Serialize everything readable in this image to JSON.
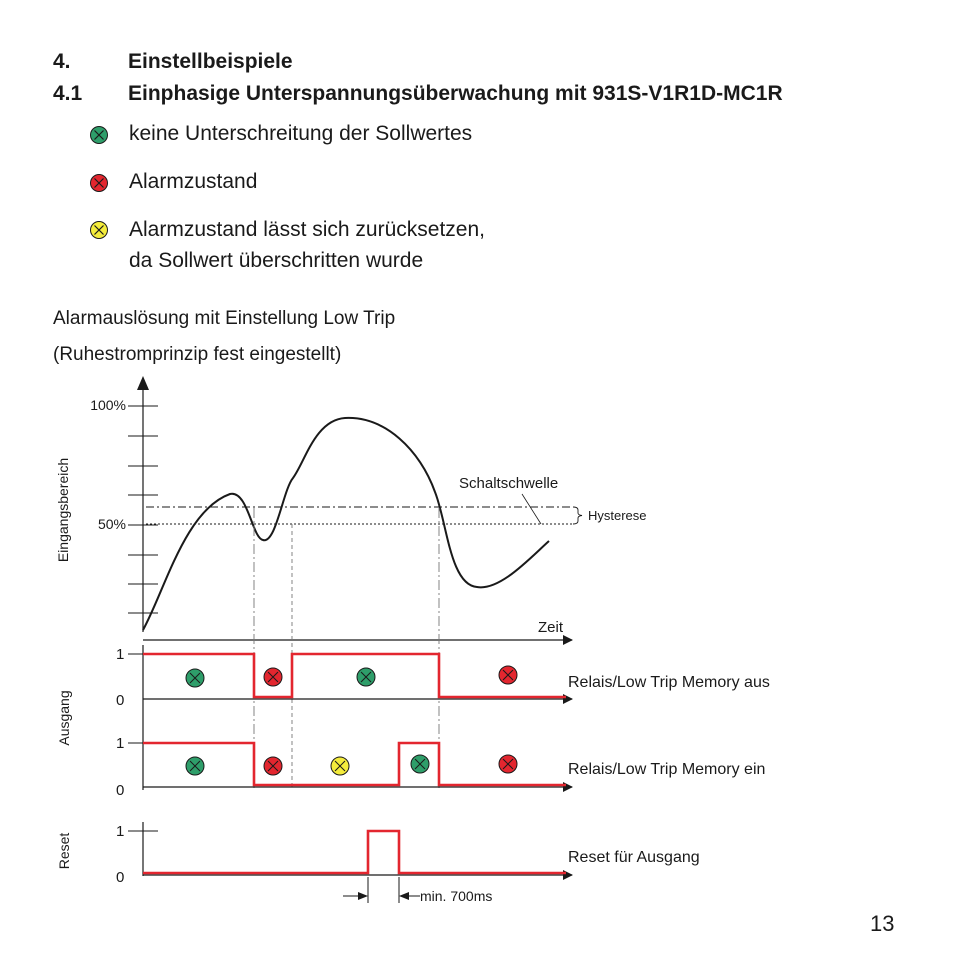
{
  "heading1": {
    "number": "4.",
    "title": "Einstellbeispiele"
  },
  "heading2": {
    "number": "4.1",
    "title": "Einphasige Unterspannungsüberwachung mit 931S-V1R1D-MC1R"
  },
  "legend": [
    {
      "icon": "green-indicator-icon",
      "color": "#2e9e6a",
      "text": "keine Unterschreitung der Sollwertes"
    },
    {
      "icon": "red-indicator-icon",
      "color": "#e3262f",
      "text": "Alarmzustand"
    },
    {
      "icon": "yellow-indicator-icon",
      "color": "#f4ec3c",
      "text": "Alarmzustand lässt sich zurücksetzen,",
      "text2": "da Sollwert überschritten wurde"
    }
  ],
  "diagram": {
    "title_line1": "Alarmauslösung mit Einstellung Low Trip",
    "title_line2": "(Ruhestromprinzip fest eingestellt)",
    "input": {
      "axis_label": "Eingangsbereich",
      "tick_100": "100%",
      "tick_50": "50%",
      "threshold_label": "Schaltschwelle",
      "hysteresis_label": "Hysterese",
      "time_label": "Zeit"
    },
    "output": {
      "axis_label": "Ausgang",
      "level_1": "1",
      "level_0": "0",
      "trace1_label": "Relais/Low Trip Memory aus",
      "trace2_label": "Relais/Low Trip Memory ein"
    },
    "reset": {
      "axis_label": "Reset",
      "level_1": "1",
      "level_0": "0",
      "trace_label": "Reset für Ausgang",
      "pulse_label": "min. 700ms"
    },
    "colors": {
      "signal": "#e3262f",
      "line": "#1a1a1a",
      "guide": "#777777"
    }
  },
  "page_number": "13"
}
